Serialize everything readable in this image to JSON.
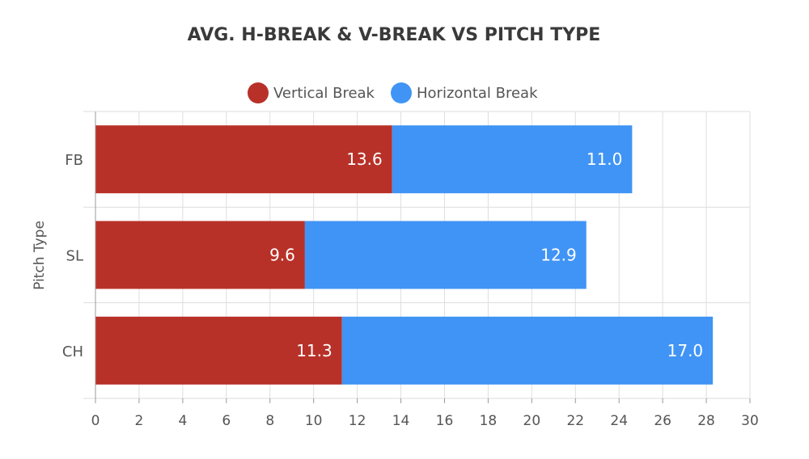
{
  "chart_data": {
    "type": "bar",
    "orientation": "horizontal",
    "stacked": true,
    "title": "AVG. H-BREAK & V-BREAK VS PITCH TYPE",
    "ylabel": "Pitch Type",
    "xlabel": "",
    "categories": [
      "FB",
      "SL",
      "CH"
    ],
    "series": [
      {
        "name": "Vertical Break",
        "color": "#b83129",
        "values": [
          13.6,
          9.6,
          11.3
        ],
        "labels": [
          "13.6",
          "9.6",
          "11.3"
        ]
      },
      {
        "name": "Horizontal Break",
        "color": "#4094f5",
        "values": [
          11.0,
          12.9,
          17.0
        ],
        "labels": [
          "11.0",
          "12.9",
          "17.0"
        ]
      }
    ],
    "xlim": [
      0,
      30
    ],
    "xticks": [
      "0",
      "2",
      "4",
      "6",
      "8",
      "10",
      "12",
      "14",
      "16",
      "18",
      "20",
      "22",
      "24",
      "26",
      "28",
      "30"
    ],
    "grid": true,
    "legend": "top-center"
  }
}
